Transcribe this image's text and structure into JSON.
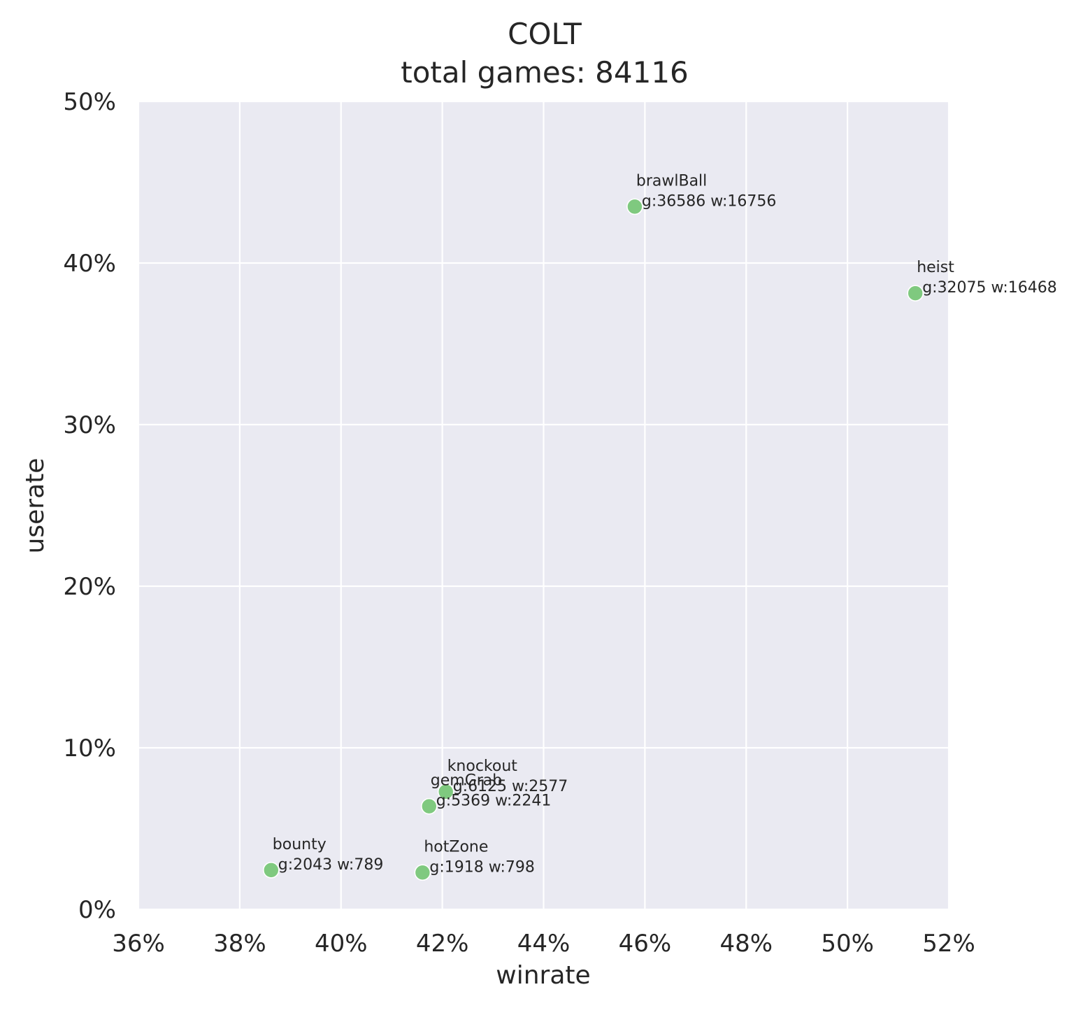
{
  "chart_data": {
    "type": "scatter",
    "title": "COLT",
    "subtitle": "total games: 84116",
    "xlabel": "winrate",
    "ylabel": "userate",
    "xlim": [
      36,
      52
    ],
    "ylim": [
      0,
      50
    ],
    "x_ticks": [
      36,
      38,
      40,
      42,
      44,
      46,
      48,
      50,
      52
    ],
    "y_ticks": [
      0,
      10,
      20,
      30,
      40,
      50
    ],
    "x_tick_labels": [
      "36%",
      "38%",
      "40%",
      "42%",
      "44%",
      "46%",
      "48%",
      "50%",
      "52%"
    ],
    "y_tick_labels": [
      "0%",
      "10%",
      "20%",
      "30%",
      "40%",
      "50%"
    ],
    "grid": true,
    "point_color": "#7fc97f",
    "background_color": "#eaeaf2",
    "points": [
      {
        "mode": "brawlBall",
        "x": 45.8,
        "y": 43.49,
        "stats": "g:36586 w:16756"
      },
      {
        "mode": "heist",
        "x": 51.34,
        "y": 38.13,
        "stats": "g:32075 w:16468"
      },
      {
        "mode": "knockout",
        "x": 42.07,
        "y": 7.28,
        "stats": "g:6125 w:2577"
      },
      {
        "mode": "gemGrab",
        "x": 41.74,
        "y": 6.38,
        "stats": "g:5369 w:2241"
      },
      {
        "mode": "bounty",
        "x": 38.62,
        "y": 2.43,
        "stats": "g:2043 w:789"
      },
      {
        "mode": "hotZone",
        "x": 41.61,
        "y": 2.28,
        "stats": "g:1918 w:798"
      }
    ]
  }
}
